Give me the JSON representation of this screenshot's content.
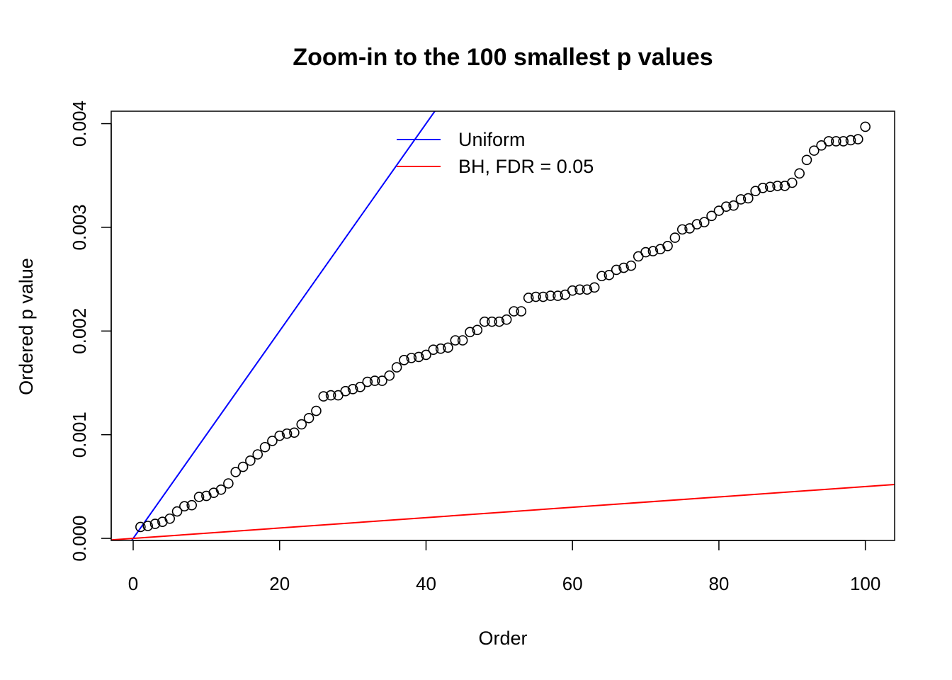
{
  "chart_data": {
    "type": "scatter",
    "title": "Zoom-in to the 100 smallest p values",
    "xlabel": "Order",
    "ylabel": "Ordered p value",
    "xlim": [
      -3,
      104
    ],
    "ylim": [
      -2e-05,
      0.00412
    ],
    "xticks": [
      0,
      20,
      40,
      60,
      80,
      100
    ],
    "xtick_labels": [
      "0",
      "20",
      "40",
      "60",
      "80",
      "100"
    ],
    "yticks": [
      0,
      0.001,
      0.002,
      0.003,
      0.004
    ],
    "ytick_labels": [
      "0.000",
      "0.001",
      "0.002",
      "0.003",
      "0.004"
    ],
    "grid": false,
    "legend_position": "top-center",
    "legend": [
      {
        "label": "Uniform",
        "color": "#0000ff"
      },
      {
        "label": "BH, FDR = 0.05",
        "color": "#ff0000"
      }
    ],
    "lines": [
      {
        "name": "Uniform",
        "color": "#0000ff",
        "intercept": 0,
        "slope": 0.0001
      },
      {
        "name": "BH, FDR = 0.05",
        "color": "#ff0000",
        "intercept": 0,
        "slope": 5e-06
      }
    ],
    "series": [
      {
        "marker": "open-circle",
        "color": "#000000",
        "x": [
          1,
          2,
          3,
          4,
          5,
          6,
          7,
          8,
          9,
          10,
          11,
          12,
          13,
          14,
          15,
          16,
          17,
          18,
          19,
          20,
          21,
          22,
          23,
          24,
          25,
          26,
          27,
          28,
          29,
          30,
          31,
          32,
          33,
          34,
          35,
          36,
          37,
          38,
          39,
          40,
          41,
          42,
          43,
          44,
          45,
          46,
          47,
          48,
          49,
          50,
          51,
          52,
          53,
          54,
          55,
          56,
          57,
          58,
          59,
          60,
          61,
          62,
          63,
          64,
          65,
          66,
          67,
          68,
          69,
          70,
          71,
          72,
          73,
          74,
          75,
          76,
          77,
          78,
          79,
          80,
          81,
          82,
          83,
          84,
          85,
          86,
          87,
          88,
          89,
          90,
          91,
          92,
          93,
          94,
          95,
          96,
          97,
          98,
          99,
          100
        ],
        "y": [
          0.00011,
          0.00012,
          0.00014,
          0.00016,
          0.00019,
          0.00026,
          0.00031,
          0.00032,
          0.0004,
          0.00041,
          0.00044,
          0.00047,
          0.00053,
          0.00064,
          0.00069,
          0.00075,
          0.00081,
          0.00088,
          0.00094,
          0.00099,
          0.00101,
          0.00102,
          0.0011,
          0.00116,
          0.00123,
          0.00137,
          0.00138,
          0.00138,
          0.00142,
          0.00144,
          0.00146,
          0.00151,
          0.00152,
          0.00152,
          0.00157,
          0.00165,
          0.00172,
          0.00174,
          0.00175,
          0.00177,
          0.00182,
          0.00183,
          0.00184,
          0.00191,
          0.00191,
          0.00199,
          0.00201,
          0.00209,
          0.00209,
          0.00209,
          0.00211,
          0.00219,
          0.00219,
          0.00232,
          0.00233,
          0.00233,
          0.00234,
          0.00234,
          0.00235,
          0.00239,
          0.0024,
          0.0024,
          0.00242,
          0.00253,
          0.00254,
          0.00259,
          0.00261,
          0.00263,
          0.00272,
          0.00276,
          0.00277,
          0.00279,
          0.00282,
          0.0029,
          0.00298,
          0.00299,
          0.00303,
          0.00305,
          0.00311,
          0.00316,
          0.0032,
          0.00321,
          0.00327,
          0.00328,
          0.00335,
          0.00338,
          0.00339,
          0.0034,
          0.0034,
          0.00343,
          0.00352,
          0.00365,
          0.00374,
          0.00379,
          0.00383,
          0.00383,
          0.00383,
          0.00384,
          0.00385,
          0.00397
        ]
      }
    ]
  }
}
